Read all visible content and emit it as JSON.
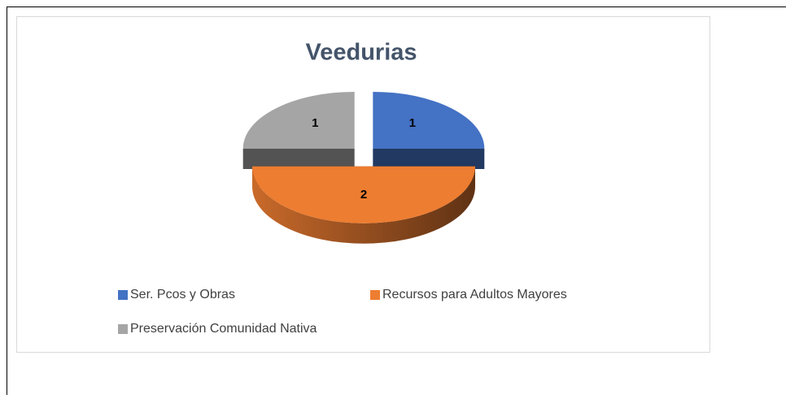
{
  "chart_data": {
    "type": "pie",
    "title": "Veedurias",
    "categories": [
      "Ser. Pcos y Obras",
      "Recursos para Adultos Mayores",
      "Preservación Comunidad Nativa"
    ],
    "values": [
      1,
      2,
      1
    ],
    "colors": [
      "#4472c4",
      "#ed7d31",
      "#a5a5a5"
    ],
    "three_d": true,
    "exploded": true,
    "legend": "bottom"
  }
}
